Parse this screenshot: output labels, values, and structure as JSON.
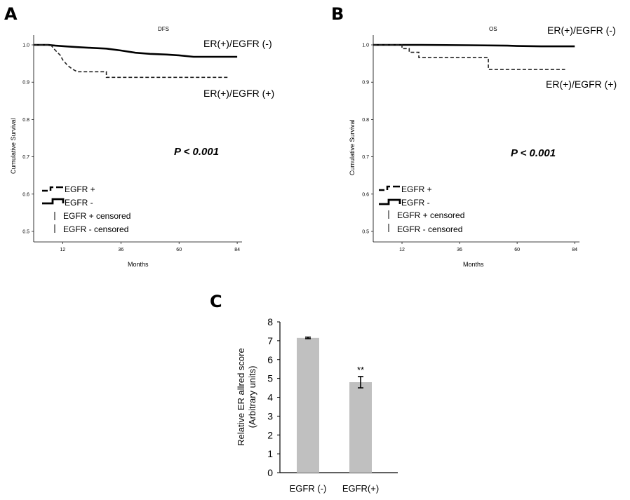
{
  "chart_data": [
    {
      "panel": "A",
      "type": "line",
      "title": "DFS",
      "xlabel": "Months",
      "ylabel": "Cumulative Survival",
      "xticks": [
        12,
        36,
        60,
        84
      ],
      "yticks": [
        "0.5",
        "0.6",
        "0.7",
        "0.8",
        "0.9",
        "1.0"
      ],
      "xlim": [
        0,
        86
      ],
      "ylim": [
        0.5,
        1.0
      ],
      "pvalue": "P < 0.001",
      "series": [
        {
          "name": "ER(+)/EGFR (-)",
          "style": "solid",
          "points": [
            [
              0,
              1.0
            ],
            [
              6,
              1.0
            ],
            [
              9,
              0.998
            ],
            [
              13,
              0.996
            ],
            [
              18,
              0.994
            ],
            [
              24,
              0.992
            ],
            [
              30,
              0.99
            ],
            [
              36,
              0.985
            ],
            [
              42,
              0.979
            ],
            [
              48,
              0.976
            ],
            [
              55,
              0.974
            ],
            [
              60,
              0.972
            ],
            [
              66,
              0.968
            ],
            [
              72,
              0.968
            ],
            [
              84,
              0.968
            ]
          ]
        },
        {
          "name": "ER(+)/EGFR (+)",
          "style": "dashed",
          "points": [
            [
              0,
              1.0
            ],
            [
              7,
              1.0
            ],
            [
              9,
              0.985
            ],
            [
              11,
              0.972
            ],
            [
              12,
              0.96
            ],
            [
              14,
              0.945
            ],
            [
              16,
              0.935
            ],
            [
              18,
              0.928
            ],
            [
              21,
              0.928
            ],
            [
              30,
              0.928
            ],
            [
              30,
              0.913
            ],
            [
              56,
              0.913
            ],
            [
              80,
              0.913
            ]
          ]
        }
      ],
      "legend": [
        "EGFR +",
        "EGFR -",
        "EGFR + censored",
        "EGFR - censored"
      ]
    },
    {
      "panel": "B",
      "type": "line",
      "title": "OS",
      "xlabel": "Months",
      "ylabel": "Cumulative Survival",
      "xticks": [
        12,
        36,
        60,
        84
      ],
      "yticks": [
        "0.5",
        "0.6",
        "0.7",
        "0.8",
        "0.9",
        "1.0"
      ],
      "xlim": [
        0,
        86
      ],
      "ylim": [
        0.5,
        1.0
      ],
      "pvalue": "P < 0.001",
      "series": [
        {
          "name": "ER(+)/EGFR (-)",
          "style": "solid",
          "points": [
            [
              0,
              1.0
            ],
            [
              20,
              1.0
            ],
            [
              40,
              0.999
            ],
            [
              56,
              0.998
            ],
            [
              60,
              0.997
            ],
            [
              70,
              0.996
            ],
            [
              84,
              0.996
            ]
          ]
        },
        {
          "name": "ER(+)/EGFR (+)",
          "style": "dashed",
          "points": [
            [
              0,
              1.0
            ],
            [
              12,
              1.0
            ],
            [
              12,
              0.99
            ],
            [
              15,
              0.99
            ],
            [
              15,
              0.98
            ],
            [
              19,
              0.98
            ],
            [
              19,
              0.966
            ],
            [
              48,
              0.966
            ],
            [
              48,
              0.934
            ],
            [
              60,
              0.934
            ],
            [
              80,
              0.934
            ]
          ]
        }
      ],
      "legend": [
        "EGFR +",
        "EGFR -",
        "EGFR + censored",
        "EGFR - censored"
      ]
    },
    {
      "panel": "C",
      "type": "bar",
      "categories": [
        "EGFR (-)",
        "EGFR(+)"
      ],
      "values": [
        7.15,
        4.8
      ],
      "errors": [
        0.04,
        0.3
      ],
      "significance": [
        "",
        "**"
      ],
      "ylabel": "Relative ER allred score",
      "ylabel2": "(Arbitrary units)",
      "ylim": [
        0,
        8
      ],
      "yticks": [
        "0",
        "1",
        "2",
        "3",
        "4",
        "5",
        "6",
        "7",
        "8"
      ],
      "bar_color": "#c0c0c0"
    }
  ]
}
